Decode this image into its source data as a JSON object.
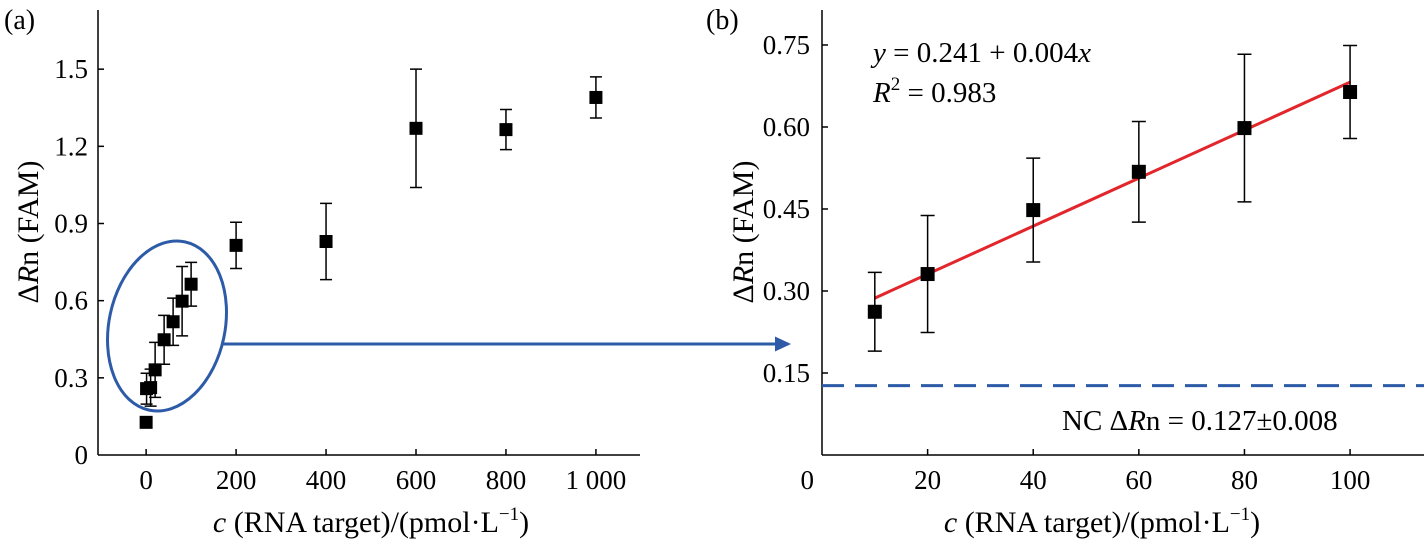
{
  "colors": {
    "marker": "#000000",
    "axis": "#000000",
    "fit_line": "#e2262c",
    "annotation": "#2d5ba8"
  },
  "chart_data": [
    {
      "panel_label": "(a)",
      "type": "scatter",
      "grid": false,
      "x_axis": {
        "label": {
          "var": "c",
          "text": " (RNA target)/(pmol·L",
          "sup": "−1",
          "close": ")"
        },
        "lim": [
          -107,
          1098
        ],
        "ticks": [
          {
            "value": 0,
            "label": "0"
          },
          {
            "value": 200,
            "label": "200"
          },
          {
            "value": 400,
            "label": "400"
          },
          {
            "value": 600,
            "label": "600"
          },
          {
            "value": 800,
            "label": "800"
          },
          {
            "value": 1000,
            "label": "1 000"
          }
        ]
      },
      "y_axis": {
        "label": {
          "pre": "Δ",
          "var": "R",
          "text": "n (FAM)"
        },
        "lim": [
          0,
          1.73
        ],
        "ticks": [
          {
            "value": 0,
            "label": "0"
          },
          {
            "value": 0.3,
            "label": "0.3"
          },
          {
            "value": 0.6,
            "label": "0.6"
          },
          {
            "value": 0.9,
            "label": "0.9"
          },
          {
            "value": 1.2,
            "label": "1.2"
          },
          {
            "value": 1.5,
            "label": "1.5"
          }
        ]
      },
      "series": [
        {
          "marker": "square",
          "points": [
            {
              "x": 0,
              "y": 0.127,
              "err": 0.008
            },
            {
              "x": 1,
              "y": 0.258,
              "err": 0.06
            },
            {
              "x": 10,
              "y": 0.262,
              "err": 0.072
            },
            {
              "x": 20,
              "y": 0.331,
              "err": 0.107
            },
            {
              "x": 40,
              "y": 0.448,
              "err": 0.095
            },
            {
              "x": 60,
              "y": 0.518,
              "err": 0.092
            },
            {
              "x": 80,
              "y": 0.598,
              "err": 0.135
            },
            {
              "x": 100,
              "y": 0.664,
              "err": 0.085
            },
            {
              "x": 200,
              "y": 0.815,
              "err": 0.09
            },
            {
              "x": 400,
              "y": 0.83,
              "err": 0.148
            },
            {
              "x": 600,
              "y": 1.27,
              "err": 0.23
            },
            {
              "x": 800,
              "y": 1.265,
              "err": 0.078
            },
            {
              "x": 1000,
              "y": 1.39,
              "err": 0.08
            }
          ]
        }
      ]
    },
    {
      "panel_label": "(b)",
      "type": "scatter",
      "grid": false,
      "x_axis": {
        "label": {
          "var": "c",
          "text": " (RNA target)/(pmol·L",
          "sup": "−1",
          "close": ")"
        },
        "lim": [
          0,
          114
        ],
        "ticks": [
          {
            "value": 0,
            "label": "0"
          },
          {
            "value": 20,
            "label": "20"
          },
          {
            "value": 40,
            "label": "40"
          },
          {
            "value": 60,
            "label": "60"
          },
          {
            "value": 80,
            "label": "80"
          },
          {
            "value": 100,
            "label": "100"
          }
        ]
      },
      "y_axis": {
        "label": {
          "pre": "Δ",
          "var": "R",
          "text": "n (FAM)"
        },
        "lim": [
          0,
          0.814
        ],
        "ticks": [
          {
            "value": 0.15,
            "label": "0.15"
          },
          {
            "value": 0.3,
            "label": "0.30"
          },
          {
            "value": 0.45,
            "label": "0.45"
          },
          {
            "value": 0.6,
            "label": "0.60"
          },
          {
            "value": 0.75,
            "label": "0.75"
          }
        ]
      },
      "series": [
        {
          "marker": "square",
          "points": [
            {
              "x": 10,
              "y": 0.262,
              "err": 0.072
            },
            {
              "x": 20,
              "y": 0.331,
              "err": 0.107
            },
            {
              "x": 40,
              "y": 0.448,
              "err": 0.095
            },
            {
              "x": 60,
              "y": 0.518,
              "err": 0.092
            },
            {
              "x": 80,
              "y": 0.598,
              "err": 0.135
            },
            {
              "x": 100,
              "y": 0.664,
              "err": 0.085
            }
          ]
        }
      ],
      "fit_line": {
        "x": [
          10,
          100
        ],
        "y": [
          0.287,
          0.682
        ],
        "equation": {
          "y_var": "y",
          "text": " = 0.241 + 0.004",
          "x_var": "x"
        },
        "r_squared": {
          "var": "R",
          "sup": "2",
          "text": " = 0.983"
        }
      },
      "reference_line": {
        "y": 0.127,
        "style": "dashed",
        "label": {
          "pre": "NC Δ",
          "var": "R",
          "text": "n = 0.127±0.008"
        }
      }
    }
  ]
}
